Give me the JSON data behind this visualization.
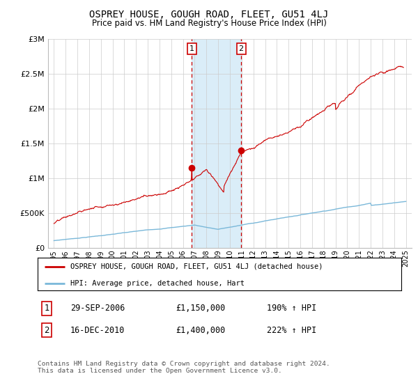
{
  "title": "OSPREY HOUSE, GOUGH ROAD, FLEET, GU51 4LJ",
  "subtitle": "Price paid vs. HM Land Registry's House Price Index (HPI)",
  "legend_line1": "OSPREY HOUSE, GOUGH ROAD, FLEET, GU51 4LJ (detached house)",
  "legend_line2": "HPI: Average price, detached house, Hart",
  "transaction1_date": "29-SEP-2006",
  "transaction1_price": "£1,150,000",
  "transaction1_hpi": "190% ↑ HPI",
  "transaction2_date": "16-DEC-2010",
  "transaction2_price": "£1,400,000",
  "transaction2_hpi": "222% ↑ HPI",
  "footer": "Contains HM Land Registry data © Crown copyright and database right 2024.\nThis data is licensed under the Open Government Licence v3.0.",
  "hpi_color": "#7ab8d9",
  "price_color": "#cc0000",
  "transaction_box_color": "#cc0000",
  "shade_color": "#daedf8",
  "dashed_color": "#cc0000",
  "ylim": [
    0,
    3000000
  ],
  "yticks": [
    0,
    500000,
    1000000,
    1500000,
    2000000,
    2500000,
    3000000
  ],
  "ytick_labels": [
    "£0",
    "£500K",
    "£1M",
    "£1.5M",
    "£2M",
    "£2.5M",
    "£3M"
  ],
  "x_start_year": 1994.5,
  "x_end_year": 2025.5,
  "transaction1_year": 2006.75,
  "transaction2_year": 2010.96,
  "transaction1_price_val": 1150000,
  "transaction2_price_val": 1400000,
  "background_color": "#ffffff",
  "grid_color": "#cccccc"
}
